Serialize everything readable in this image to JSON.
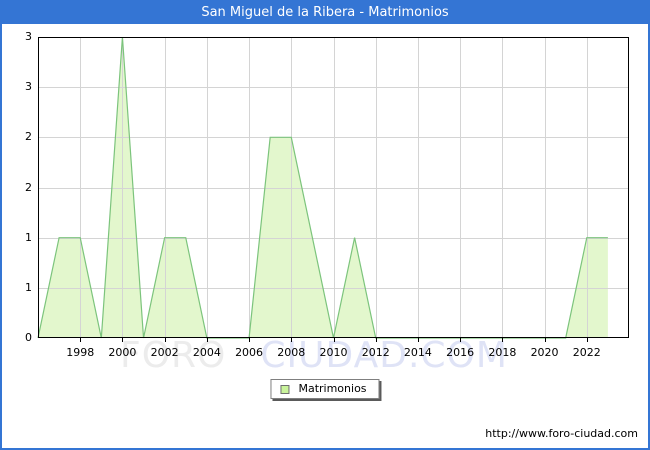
{
  "page": {
    "title": "San Miguel de la Ribera - Matrimonios",
    "url": "http://www.foro-ciudad.com",
    "accent_color": "#3475d4"
  },
  "watermark": {
    "left": "FORO",
    "right": "CIUDAD.COM"
  },
  "legend": {
    "label": "Matrimonios",
    "swatch_color": "#c9f39b"
  },
  "chart_data": {
    "type": "area",
    "title": "San Miguel de la Ribera - Matrimonios",
    "series_name": "Matrimonios",
    "x": [
      1996,
      1997,
      1998,
      1999,
      2000,
      2001,
      2002,
      2003,
      2004,
      2005,
      2006,
      2007,
      2008,
      2009,
      2010,
      2011,
      2012,
      2013,
      2014,
      2015,
      2016,
      2017,
      2018,
      2019,
      2020,
      2021,
      2022,
      2023
    ],
    "values": [
      0,
      1,
      1,
      0,
      3,
      0,
      1,
      1,
      0,
      0,
      0,
      2,
      2,
      1,
      0,
      1,
      0,
      0,
      0,
      0,
      0,
      0,
      0,
      0,
      0,
      0,
      1,
      1
    ],
    "xlim": [
      1996,
      2024
    ],
    "ylim": [
      0,
      3
    ],
    "xticks": [
      1998,
      2000,
      2002,
      2004,
      2006,
      2008,
      2010,
      2012,
      2014,
      2016,
      2018,
      2020,
      2022
    ],
    "ytick_values": [
      0,
      0.5,
      1,
      1.5,
      2,
      2.5,
      3
    ],
    "ytick_labels": [
      "0",
      "1",
      "1",
      "2",
      "2",
      "3",
      "3"
    ],
    "grid": true,
    "legend_position": "bottom-center",
    "line_color": "#7cc47c",
    "fill_color": "#e3f7cd",
    "grid_color": "#d4d4d4",
    "axis_color": "#000000"
  }
}
